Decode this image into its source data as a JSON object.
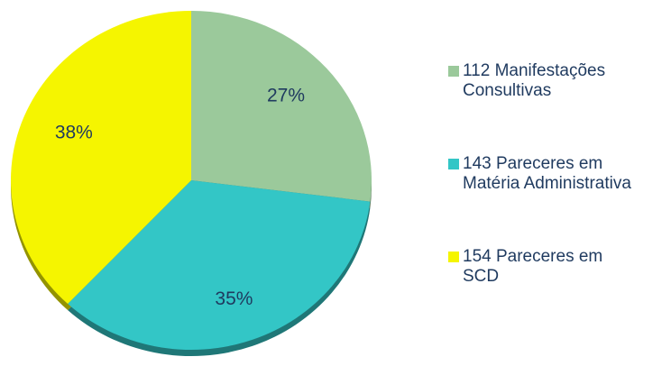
{
  "chart_data": {
    "type": "pie",
    "categories": [
      "112 Manifestações Consultivas",
      "143 Pareceres em Matéria Administrativa",
      "154 Pareceres em SCD"
    ],
    "values": [
      27,
      35,
      38
    ],
    "value_labels": [
      "27%",
      "35%",
      "38%"
    ],
    "colors": [
      "#9bc99b",
      "#33c6c6",
      "#f5f500"
    ],
    "legend": "right"
  }
}
